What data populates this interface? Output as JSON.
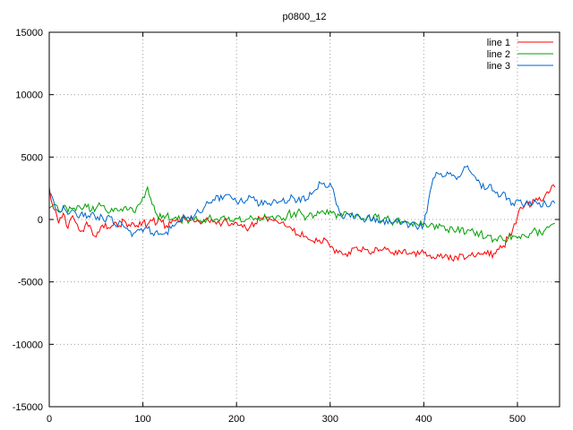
{
  "chart_data": {
    "type": "line",
    "title": "p0800_12",
    "xlabel": "",
    "ylabel": "",
    "xlim": [
      0,
      545
    ],
    "ylim": [
      -15000,
      15000
    ],
    "x_ticks": [
      0,
      100,
      200,
      300,
      400,
      500
    ],
    "y_ticks": [
      -15000,
      -10000,
      -5000,
      0,
      5000,
      10000,
      15000
    ],
    "grid": true,
    "grid_color": "#a0a0a0",
    "border_color": "#000000",
    "legend_position": "top-right-inside",
    "x_start": 0,
    "x_step": 5,
    "noise_amplitude": 330,
    "series": [
      {
        "name": "line 1",
        "color": "#ff0000",
        "values": [
          2600,
          800,
          -300,
          500,
          -700,
          300,
          -400,
          -900,
          -200,
          -800,
          -1400,
          -600,
          -300,
          -700,
          -200,
          -500,
          -100,
          -400,
          -300,
          -600,
          -200,
          -400,
          -100,
          -300,
          -200,
          -500,
          -300,
          -100,
          -200,
          0,
          -100,
          -200,
          -100,
          -150,
          -100,
          -200,
          -150,
          -250,
          -200,
          -300,
          -250,
          -400,
          -700,
          -500,
          -300,
          100,
          300,
          100,
          -100,
          -300,
          -200,
          -600,
          -900,
          -1200,
          -1000,
          -1400,
          -1700,
          -1500,
          -1900,
          -1600,
          -2200,
          -2700,
          -2500,
          -2800,
          -2600,
          -2300,
          -2500,
          -2200,
          -2400,
          -2600,
          -2300,
          -2500,
          -2400,
          -2700,
          -2500,
          -2600,
          -2400,
          -2700,
          -2600,
          -2800,
          -2700,
          -2900,
          -3000,
          -2800,
          -3100,
          -2900,
          -3200,
          -3000,
          -2800,
          -3100,
          -2900,
          -3000,
          -2800,
          -2600,
          -2900,
          -2700,
          -2400,
          -2100,
          -1500,
          -800,
          200,
          900,
          1400,
          1200,
          1700,
          1500,
          2000,
          2300,
          2600
        ]
      },
      {
        "name": "line 2",
        "color": "#00a000",
        "values": [
          900,
          1200,
          700,
          1000,
          600,
          900,
          1100,
          800,
          1000,
          700,
          900,
          1100,
          800,
          600,
          900,
          700,
          1000,
          800,
          600,
          1200,
          1800,
          2600,
          1200,
          400,
          100,
          300,
          0,
          200,
          -100,
          100,
          -100,
          0,
          -200,
          0,
          100,
          -100,
          0,
          200,
          0,
          -100,
          100,
          -200,
          0,
          300,
          100,
          -100,
          400,
          200,
          0,
          300,
          100,
          500,
          300,
          600,
          400,
          200,
          500,
          300,
          600,
          400,
          700,
          500,
          300,
          600,
          400,
          200,
          400,
          100,
          300,
          0,
          200,
          -100,
          100,
          -200,
          0,
          -300,
          -100,
          -400,
          -200,
          -500,
          -300,
          -600,
          -400,
          -700,
          -500,
          -800,
          -600,
          -900,
          -700,
          -1100,
          -900,
          -1300,
          -1100,
          -1500,
          -1300,
          -1600,
          -1400,
          -1700,
          -1500,
          -1300,
          -1500,
          -1200,
          -1400,
          -1100,
          -900,
          -1100,
          -800,
          -500,
          -300
        ]
      },
      {
        "name": "line 3",
        "color": "#0066cc",
        "values": [
          2100,
          1400,
          600,
          1100,
          400,
          800,
          200,
          600,
          100,
          500,
          0,
          400,
          -200,
          200,
          -400,
          -100,
          -600,
          -900,
          -1100,
          -800,
          -1000,
          -700,
          -1100,
          -900,
          -1200,
          -1000,
          -700,
          -400,
          -100,
          200,
          0,
          300,
          600,
          900,
          1300,
          1600,
          1900,
          1600,
          2000,
          1700,
          1400,
          1700,
          1500,
          1800,
          1500,
          1200,
          1500,
          1300,
          1600,
          1400,
          1700,
          1500,
          1800,
          1500,
          1800,
          1600,
          2000,
          2400,
          2900,
          2600,
          2900,
          1800,
          600,
          100,
          400,
          100,
          300,
          0,
          200,
          -100,
          100,
          -200,
          0,
          -300,
          -100,
          -400,
          -200,
          -500,
          -300,
          -600,
          -400,
          1500,
          3300,
          3700,
          3400,
          3800,
          3500,
          3200,
          3600,
          4200,
          3800,
          3400,
          2900,
          2400,
          2800,
          2300,
          1800,
          2200,
          1700,
          1300,
          1600,
          1200,
          1500,
          1100,
          1400,
          1000,
          1300,
          1100,
          1300
        ]
      }
    ]
  }
}
